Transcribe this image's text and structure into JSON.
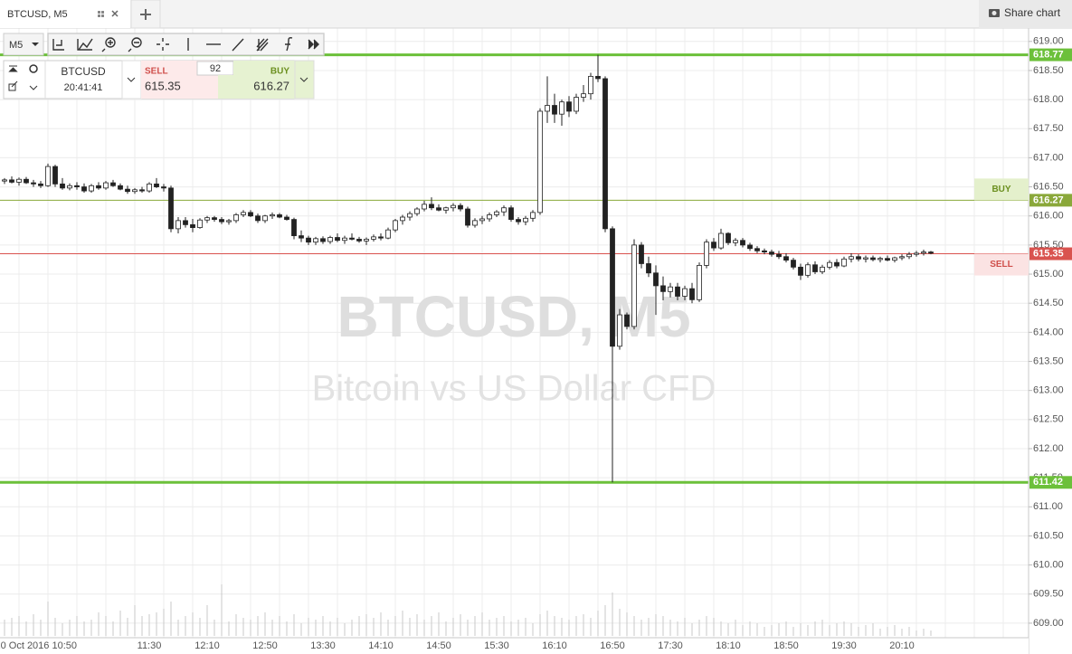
{
  "ui": {
    "tab": "BTCUSD, M5",
    "share": "Share chart",
    "interval": "M5",
    "symbol": "BTCUSD",
    "clock": "20:41:41",
    "sell_label": "SELL",
    "buy_label": "BUY",
    "spread": 92
  },
  "chart_data": {
    "type": "candlestick",
    "watermark": [
      "BTCUSD, M5",
      "Bitcoin vs US Dollar CFD"
    ],
    "up_color": "#ffffff",
    "down_color": "#222222",
    "grid": true,
    "ylim": [
      608.75,
      619.23
    ],
    "yticks": [
      {
        "value": 609,
        "label": "609.00"
      },
      {
        "value": 609.5,
        "label": "609.50"
      },
      {
        "value": 610,
        "label": "610.00"
      },
      {
        "value": 610.5,
        "label": "610.50"
      },
      {
        "value": 611,
        "label": "611.00"
      },
      {
        "value": 611.5,
        "label": "611.50"
      },
      {
        "value": 612,
        "label": "612.00"
      },
      {
        "value": 612.5,
        "label": "612.50"
      },
      {
        "value": 613,
        "label": "613.00"
      },
      {
        "value": 613.5,
        "label": "613.50"
      },
      {
        "value": 614,
        "label": "614.00"
      },
      {
        "value": 614.5,
        "label": "614.50"
      },
      {
        "value": 615,
        "label": "615.00"
      },
      {
        "value": 615.5,
        "label": "615.50"
      },
      {
        "value": 616,
        "label": "616.00"
      },
      {
        "value": 616.5,
        "label": "616.50"
      },
      {
        "value": 617,
        "label": "617.00"
      },
      {
        "value": 617.5,
        "label": "617.50"
      },
      {
        "value": 618,
        "label": "618.00"
      },
      {
        "value": 618.5,
        "label": "618.50"
      },
      {
        "value": 619,
        "label": "619.00"
      }
    ],
    "levels": [
      {
        "value": 618.77,
        "color": "#6cc03a",
        "width": 3
      },
      {
        "value": 611.42,
        "color": "#6cc03a",
        "width": 3
      },
      {
        "value": 616.27,
        "color": "#8aa83a",
        "width": 1,
        "tag": "BUY",
        "tag_color": "#e4f0cc",
        "tag_text": "#6b8f1f"
      },
      {
        "value": 615.35,
        "color": "#d9534f",
        "width": 1,
        "tag": "SELL",
        "tag_color": "#fbe3e3",
        "tag_text": "#d0504c"
      }
    ],
    "categories": [
      null,
      null,
      null,
      null,
      null,
      null,
      null,
      null,
      null,
      null,
      "10 Oct 2016 10:50",
      null,
      null,
      null,
      null,
      null,
      null,
      null,
      null,
      null,
      "11:30",
      null,
      null,
      null,
      null,
      null,
      null,
      null,
      "12:10",
      null,
      null,
      null,
      null,
      null,
      null,
      null,
      "12:50",
      null,
      null,
      null,
      null,
      null,
      null,
      null,
      "13:30",
      null,
      null,
      null,
      null,
      null,
      null,
      null,
      "14:10",
      null,
      null,
      null,
      null,
      null,
      null,
      null,
      "14:50",
      null,
      null,
      null,
      null,
      null,
      null,
      null,
      "15:30",
      null,
      null,
      null,
      null,
      null,
      null,
      null,
      "16:10",
      null,
      null,
      null,
      null,
      null,
      null,
      null,
      "16:50",
      null,
      null,
      null,
      null,
      null,
      null,
      null,
      "17:30",
      null,
      null,
      null,
      null,
      null,
      null,
      null,
      "18:10",
      null,
      null,
      null,
      null,
      null,
      null,
      null,
      "18:50",
      null,
      null,
      null,
      null,
      null,
      null,
      null,
      "19:30",
      null,
      null,
      null,
      null,
      null,
      null,
      null,
      "20:10",
      null,
      null,
      null,
      null
    ],
    "ohlc": [
      [
        616.6,
        616.65,
        616.55,
        616.62
      ],
      [
        616.62,
        616.68,
        616.56,
        616.58
      ],
      [
        616.58,
        616.66,
        616.52,
        616.63
      ],
      [
        616.63,
        616.67,
        616.55,
        616.57
      ],
      [
        616.57,
        616.62,
        616.5,
        616.55
      ],
      [
        616.55,
        616.6,
        616.48,
        616.52
      ],
      [
        616.52,
        616.9,
        616.5,
        616.85
      ],
      [
        616.85,
        616.88,
        616.5,
        616.55
      ],
      [
        616.55,
        616.65,
        616.45,
        616.48
      ],
      [
        616.48,
        616.56,
        616.44,
        616.52
      ],
      [
        616.52,
        616.58,
        616.45,
        616.5
      ],
      [
        616.5,
        616.56,
        616.4,
        616.43
      ],
      [
        616.43,
        616.55,
        616.4,
        616.52
      ],
      [
        616.52,
        616.58,
        616.45,
        616.48
      ],
      [
        616.48,
        616.6,
        616.45,
        616.57
      ],
      [
        616.57,
        616.62,
        616.5,
        616.52
      ],
      [
        616.52,
        616.56,
        616.44,
        616.46
      ],
      [
        616.46,
        616.52,
        616.38,
        616.42
      ],
      [
        616.42,
        616.48,
        616.38,
        616.45
      ],
      [
        616.45,
        616.5,
        616.4,
        616.43
      ],
      [
        616.43,
        616.58,
        616.4,
        616.55
      ],
      [
        616.55,
        616.65,
        616.48,
        616.5
      ],
      [
        616.5,
        616.55,
        616.42,
        616.48
      ],
      [
        616.48,
        616.52,
        615.72,
        615.78
      ],
      [
        615.78,
        615.98,
        615.7,
        615.92
      ],
      [
        615.92,
        615.98,
        615.8,
        615.85
      ],
      [
        615.85,
        615.95,
        615.72,
        615.8
      ],
      [
        615.8,
        615.96,
        615.78,
        615.93
      ],
      [
        615.93,
        616.0,
        615.88,
        615.97
      ],
      [
        615.97,
        616.0,
        615.9,
        615.94
      ],
      [
        615.94,
        615.98,
        615.86,
        615.9
      ],
      [
        615.9,
        615.95,
        615.85,
        615.92
      ],
      [
        615.92,
        616.05,
        615.88,
        616.02
      ],
      [
        616.02,
        616.1,
        615.98,
        616.06
      ],
      [
        616.06,
        616.1,
        615.98,
        616.0
      ],
      [
        616.0,
        616.04,
        615.88,
        615.92
      ],
      [
        615.92,
        616.02,
        615.88,
        616.0
      ],
      [
        616.0,
        616.06,
        615.95,
        616.02
      ],
      [
        616.02,
        616.05,
        615.96,
        615.98
      ],
      [
        615.98,
        616.02,
        615.92,
        615.94
      ],
      [
        615.94,
        615.97,
        615.6,
        615.66
      ],
      [
        615.66,
        615.75,
        615.55,
        615.62
      ],
      [
        615.62,
        615.66,
        615.5,
        615.55
      ],
      [
        615.55,
        615.64,
        615.5,
        615.61
      ],
      [
        615.61,
        615.65,
        615.52,
        615.56
      ],
      [
        615.56,
        615.66,
        615.52,
        615.63
      ],
      [
        615.63,
        615.7,
        615.55,
        615.58
      ],
      [
        615.58,
        615.66,
        615.52,
        615.62
      ],
      [
        615.62,
        615.7,
        615.58,
        615.6
      ],
      [
        615.6,
        615.64,
        615.54,
        615.57
      ],
      [
        615.57,
        615.63,
        615.5,
        615.6
      ],
      [
        615.6,
        615.68,
        615.56,
        615.64
      ],
      [
        615.64,
        615.7,
        615.58,
        615.62
      ],
      [
        615.62,
        615.8,
        615.6,
        615.76
      ],
      [
        615.76,
        615.95,
        615.72,
        615.92
      ],
      [
        615.92,
        616.02,
        615.85,
        615.98
      ],
      [
        615.98,
        616.08,
        615.92,
        616.04
      ],
      [
        616.04,
        616.15,
        616.0,
        616.12
      ],
      [
        616.12,
        616.26,
        616.08,
        616.2
      ],
      [
        616.2,
        616.32,
        616.1,
        616.14
      ],
      [
        616.14,
        616.2,
        616.08,
        616.1
      ],
      [
        616.1,
        616.16,
        616.04,
        616.14
      ],
      [
        616.14,
        616.22,
        616.08,
        616.18
      ],
      [
        616.18,
        616.22,
        616.08,
        616.12
      ],
      [
        616.12,
        616.16,
        615.8,
        615.84
      ],
      [
        615.84,
        615.96,
        615.8,
        615.92
      ],
      [
        615.92,
        616.0,
        615.86,
        615.95
      ],
      [
        615.95,
        616.06,
        615.9,
        616.02
      ],
      [
        616.02,
        616.1,
        615.98,
        616.07
      ],
      [
        616.07,
        616.18,
        616.0,
        616.14
      ],
      [
        616.14,
        616.18,
        615.9,
        615.94
      ],
      [
        615.94,
        615.98,
        615.85,
        615.9
      ],
      [
        615.9,
        616.0,
        615.84,
        615.96
      ],
      [
        615.96,
        616.1,
        615.9,
        616.06
      ],
      [
        616.06,
        617.85,
        616.02,
        617.8
      ],
      [
        617.8,
        618.4,
        617.6,
        617.9
      ],
      [
        617.9,
        618.1,
        617.6,
        617.75
      ],
      [
        617.75,
        618.0,
        617.55,
        617.96
      ],
      [
        617.96,
        618.06,
        617.7,
        617.8
      ],
      [
        617.8,
        618.1,
        617.75,
        618.04
      ],
      [
        618.04,
        618.25,
        617.96,
        618.1
      ],
      [
        618.1,
        618.46,
        618.0,
        618.4
      ],
      [
        618.4,
        618.77,
        618.3,
        618.36
      ],
      [
        618.36,
        618.4,
        615.72,
        615.78
      ],
      [
        615.78,
        615.82,
        611.42,
        613.76
      ],
      [
        613.76,
        614.4,
        613.7,
        614.3
      ],
      [
        614.3,
        614.34,
        614.05,
        614.1
      ],
      [
        614.1,
        615.6,
        614.05,
        615.5
      ],
      [
        615.5,
        615.55,
        615.1,
        615.18
      ],
      [
        615.18,
        615.3,
        614.95,
        615.02
      ],
      [
        615.02,
        615.15,
        614.3,
        614.8
      ],
      [
        614.8,
        614.96,
        614.55,
        614.7
      ],
      [
        614.7,
        614.85,
        614.6,
        614.78
      ],
      [
        614.78,
        614.85,
        614.55,
        614.62
      ],
      [
        614.62,
        614.8,
        614.55,
        614.75
      ],
      [
        614.75,
        614.85,
        614.5,
        614.56
      ],
      [
        614.56,
        615.2,
        614.52,
        615.15
      ],
      [
        615.15,
        615.6,
        615.1,
        615.55
      ],
      [
        615.55,
        615.62,
        615.4,
        615.45
      ],
      [
        615.45,
        615.78,
        615.42,
        615.7
      ],
      [
        615.7,
        615.72,
        615.5,
        615.54
      ],
      [
        615.54,
        615.62,
        615.48,
        615.58
      ],
      [
        615.58,
        615.62,
        615.46,
        615.5
      ],
      [
        615.5,
        615.54,
        615.4,
        615.44
      ],
      [
        615.44,
        615.48,
        615.36,
        615.4
      ],
      [
        615.4,
        615.44,
        615.34,
        615.38
      ],
      [
        615.38,
        615.42,
        615.3,
        615.34
      ],
      [
        615.34,
        615.4,
        615.26,
        615.3
      ],
      [
        615.3,
        615.36,
        615.2,
        615.24
      ],
      [
        615.24,
        615.28,
        615.08,
        615.12
      ],
      [
        615.12,
        615.18,
        614.9,
        614.98
      ],
      [
        614.98,
        615.2,
        614.94,
        615.16
      ],
      [
        615.16,
        615.22,
        615.0,
        615.04
      ],
      [
        615.04,
        615.16,
        615.0,
        615.12
      ],
      [
        615.12,
        615.24,
        615.08,
        615.2
      ],
      [
        615.2,
        615.26,
        615.1,
        615.14
      ],
      [
        615.14,
        615.3,
        615.12,
        615.26
      ],
      [
        615.26,
        615.36,
        615.2,
        615.3
      ],
      [
        615.3,
        615.34,
        615.22,
        615.26
      ],
      [
        615.26,
        615.32,
        615.2,
        615.28
      ],
      [
        615.28,
        615.32,
        615.22,
        615.25
      ],
      [
        615.25,
        615.3,
        615.2,
        615.27
      ],
      [
        615.27,
        615.32,
        615.22,
        615.24
      ],
      [
        615.24,
        615.3,
        615.2,
        615.28
      ],
      [
        615.28,
        615.34,
        615.24,
        615.3
      ],
      [
        615.3,
        615.38,
        615.26,
        615.34
      ],
      [
        615.34,
        615.4,
        615.3,
        615.36
      ],
      [
        615.36,
        615.42,
        615.32,
        615.38
      ],
      [
        615.38,
        615.4,
        615.34,
        615.36
      ]
    ],
    "volume": [
      18,
      20,
      22,
      16,
      24,
      18,
      38,
      20,
      14,
      18,
      22,
      16,
      18,
      26,
      22,
      16,
      28,
      20,
      34,
      22,
      24,
      26,
      30,
      38,
      18,
      22,
      26,
      20,
      34,
      18,
      57,
      16,
      24,
      20,
      18,
      22,
      26,
      18,
      22,
      16,
      24,
      14,
      20,
      18,
      22,
      16,
      20,
      14,
      18,
      22,
      24,
      20,
      26,
      18,
      22,
      28,
      20,
      24,
      18,
      22,
      26,
      16,
      20,
      24,
      18,
      22,
      26,
      18,
      20,
      22,
      16,
      18,
      20,
      14,
      24,
      28,
      22,
      20,
      18,
      22,
      24,
      20,
      28,
      34,
      48,
      30,
      26,
      22,
      18,
      20,
      24,
      22,
      18,
      16,
      20,
      14,
      18,
      22,
      20,
      16,
      14,
      18,
      12,
      16,
      14,
      10,
      12,
      14,
      16,
      10,
      14,
      12,
      16,
      18,
      12,
      14,
      16,
      14,
      10,
      12,
      14,
      8,
      10,
      12,
      8,
      10,
      6,
      8,
      6
    ]
  }
}
